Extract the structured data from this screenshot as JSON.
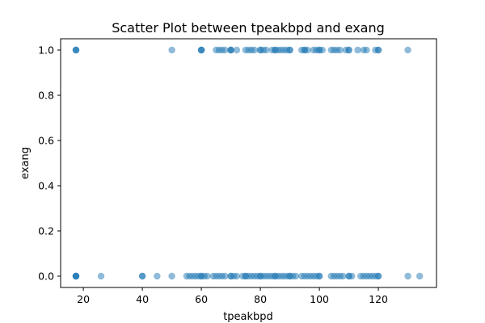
{
  "chart_data": {
    "type": "scatter",
    "title": "Scatter Plot between tpeakbpd and exang",
    "xlabel": "tpeakbpd",
    "ylabel": "exang",
    "xlim": [
      12.3,
      139.7
    ],
    "ylim": [
      -0.05,
      1.05
    ],
    "x_ticks": [
      20,
      40,
      60,
      80,
      100,
      120
    ],
    "y_ticks": [
      0.0,
      0.2,
      0.4,
      0.6,
      0.8,
      1.0
    ],
    "y_tick_labels": [
      "0.0",
      "0.2",
      "0.4",
      "0.6",
      "0.8",
      "1.0"
    ],
    "grid": false,
    "marker_color": "#1f77b4",
    "marker_alpha": 0.5,
    "points": [
      {
        "x": 17.5,
        "y": 1
      },
      {
        "x": 17.5,
        "y": 1
      },
      {
        "x": 17.5,
        "y": 1
      },
      {
        "x": 50,
        "y": 1
      },
      {
        "x": 60,
        "y": 1
      },
      {
        "x": 60,
        "y": 1
      },
      {
        "x": 60,
        "y": 1
      },
      {
        "x": 65,
        "y": 1
      },
      {
        "x": 66,
        "y": 1
      },
      {
        "x": 67,
        "y": 1
      },
      {
        "x": 68,
        "y": 1
      },
      {
        "x": 70,
        "y": 1
      },
      {
        "x": 70,
        "y": 1
      },
      {
        "x": 70,
        "y": 1
      },
      {
        "x": 72,
        "y": 1
      },
      {
        "x": 75,
        "y": 1
      },
      {
        "x": 76,
        "y": 1
      },
      {
        "x": 77,
        "y": 1
      },
      {
        "x": 78,
        "y": 1
      },
      {
        "x": 80,
        "y": 1
      },
      {
        "x": 80,
        "y": 1
      },
      {
        "x": 81,
        "y": 1
      },
      {
        "x": 82,
        "y": 1
      },
      {
        "x": 84,
        "y": 1
      },
      {
        "x": 85,
        "y": 1
      },
      {
        "x": 85,
        "y": 1
      },
      {
        "x": 86,
        "y": 1
      },
      {
        "x": 87,
        "y": 1
      },
      {
        "x": 88,
        "y": 1
      },
      {
        "x": 89,
        "y": 1
      },
      {
        "x": 90,
        "y": 1
      },
      {
        "x": 90,
        "y": 1
      },
      {
        "x": 94,
        "y": 1
      },
      {
        "x": 95,
        "y": 1
      },
      {
        "x": 95,
        "y": 1
      },
      {
        "x": 96,
        "y": 1
      },
      {
        "x": 98,
        "y": 1
      },
      {
        "x": 99,
        "y": 1
      },
      {
        "x": 100,
        "y": 1
      },
      {
        "x": 100,
        "y": 1
      },
      {
        "x": 101,
        "y": 1
      },
      {
        "x": 104,
        "y": 1
      },
      {
        "x": 105,
        "y": 1
      },
      {
        "x": 106,
        "y": 1
      },
      {
        "x": 107,
        "y": 1
      },
      {
        "x": 109,
        "y": 1
      },
      {
        "x": 110,
        "y": 1
      },
      {
        "x": 110,
        "y": 1
      },
      {
        "x": 113,
        "y": 1
      },
      {
        "x": 115,
        "y": 1
      },
      {
        "x": 116,
        "y": 1
      },
      {
        "x": 119,
        "y": 1
      },
      {
        "x": 120,
        "y": 1
      },
      {
        "x": 120,
        "y": 1
      },
      {
        "x": 130,
        "y": 1
      },
      {
        "x": 17.5,
        "y": 0
      },
      {
        "x": 17.5,
        "y": 0
      },
      {
        "x": 17.5,
        "y": 0
      },
      {
        "x": 17.5,
        "y": 0
      },
      {
        "x": 26,
        "y": 0
      },
      {
        "x": 40,
        "y": 0
      },
      {
        "x": 40,
        "y": 0
      },
      {
        "x": 45,
        "y": 0
      },
      {
        "x": 50,
        "y": 0
      },
      {
        "x": 55,
        "y": 0
      },
      {
        "x": 56,
        "y": 0
      },
      {
        "x": 57,
        "y": 0
      },
      {
        "x": 58,
        "y": 0
      },
      {
        "x": 59,
        "y": 0
      },
      {
        "x": 60,
        "y": 0
      },
      {
        "x": 60,
        "y": 0
      },
      {
        "x": 61,
        "y": 0
      },
      {
        "x": 62,
        "y": 0
      },
      {
        "x": 64,
        "y": 0
      },
      {
        "x": 65,
        "y": 0
      },
      {
        "x": 66,
        "y": 0
      },
      {
        "x": 67,
        "y": 0
      },
      {
        "x": 68,
        "y": 0
      },
      {
        "x": 70,
        "y": 0
      },
      {
        "x": 70,
        "y": 0
      },
      {
        "x": 71,
        "y": 0
      },
      {
        "x": 72,
        "y": 0
      },
      {
        "x": 74,
        "y": 0
      },
      {
        "x": 75,
        "y": 0
      },
      {
        "x": 75,
        "y": 0
      },
      {
        "x": 76,
        "y": 0
      },
      {
        "x": 77,
        "y": 0
      },
      {
        "x": 78,
        "y": 0
      },
      {
        "x": 79,
        "y": 0
      },
      {
        "x": 80,
        "y": 0
      },
      {
        "x": 80,
        "y": 0
      },
      {
        "x": 81,
        "y": 0
      },
      {
        "x": 82,
        "y": 0
      },
      {
        "x": 83,
        "y": 0
      },
      {
        "x": 84,
        "y": 0
      },
      {
        "x": 85,
        "y": 0
      },
      {
        "x": 85,
        "y": 0
      },
      {
        "x": 86,
        "y": 0
      },
      {
        "x": 87,
        "y": 0
      },
      {
        "x": 88,
        "y": 0
      },
      {
        "x": 89,
        "y": 0
      },
      {
        "x": 90,
        "y": 0
      },
      {
        "x": 90,
        "y": 0
      },
      {
        "x": 91,
        "y": 0
      },
      {
        "x": 92,
        "y": 0
      },
      {
        "x": 94,
        "y": 0
      },
      {
        "x": 95,
        "y": 0
      },
      {
        "x": 96,
        "y": 0
      },
      {
        "x": 97,
        "y": 0
      },
      {
        "x": 98,
        "y": 0
      },
      {
        "x": 99,
        "y": 0
      },
      {
        "x": 100,
        "y": 0
      },
      {
        "x": 100,
        "y": 0
      },
      {
        "x": 104,
        "y": 0
      },
      {
        "x": 105,
        "y": 0
      },
      {
        "x": 106,
        "y": 0
      },
      {
        "x": 107,
        "y": 0
      },
      {
        "x": 108,
        "y": 0
      },
      {
        "x": 110,
        "y": 0
      },
      {
        "x": 110,
        "y": 0
      },
      {
        "x": 111,
        "y": 0
      },
      {
        "x": 114,
        "y": 0
      },
      {
        "x": 115,
        "y": 0
      },
      {
        "x": 116,
        "y": 0
      },
      {
        "x": 117,
        "y": 0
      },
      {
        "x": 118,
        "y": 0
      },
      {
        "x": 119,
        "y": 0
      },
      {
        "x": 120,
        "y": 0
      },
      {
        "x": 120,
        "y": 0
      },
      {
        "x": 130,
        "y": 0
      },
      {
        "x": 134,
        "y": 0
      }
    ]
  }
}
